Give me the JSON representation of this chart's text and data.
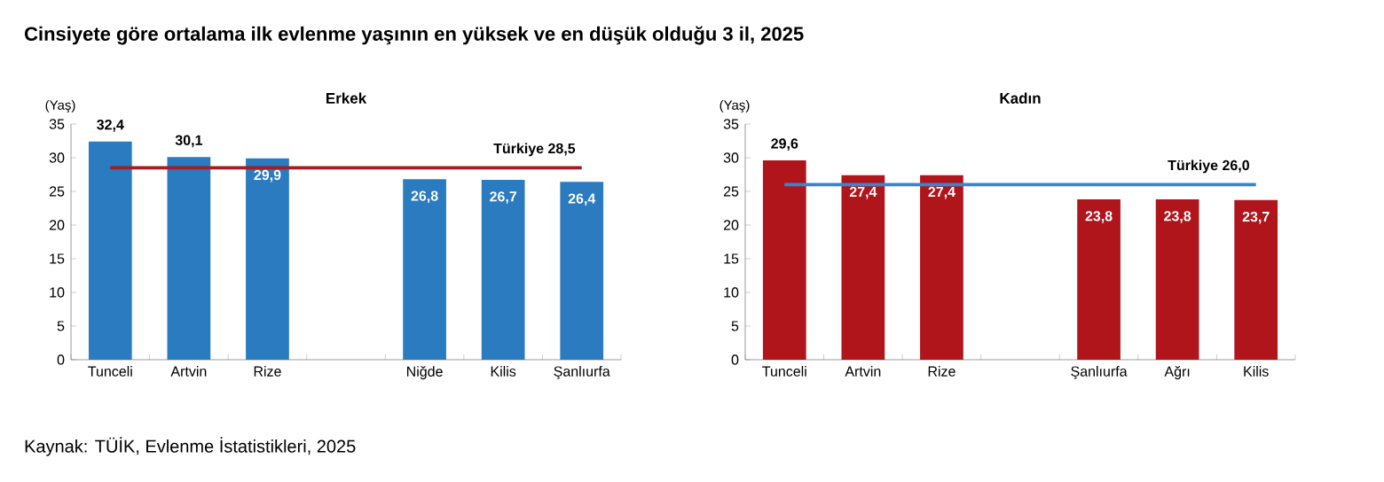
{
  "chart_data": [
    {
      "type": "bar",
      "title": "Erkek",
      "ylabel": "(Yaş)",
      "annotations": [
        "Cinsiyete göre ortalama ilk evlenme yaşının en yüksek ve en düşük olduğu 3 il, 2025",
        "Kaynak: TÜİK, Evlenme İstatistikleri, 2025"
      ],
      "categories": [
        "Tunceli",
        "Artvin",
        "Rize",
        null,
        "Niğde",
        "Kilis",
        "Şanlıurfa"
      ],
      "values": [
        32.4,
        30.1,
        29.9,
        null,
        26.8,
        26.7,
        26.4
      ],
      "value_labels": [
        "32,4",
        "30,1",
        "29,9",
        null,
        "26,8",
        "26,7",
        "26,4"
      ],
      "color": "#2b7bc0",
      "ylim": [
        0,
        35
      ],
      "yticks": [
        0,
        5,
        10,
        15,
        20,
        25,
        30,
        35
      ],
      "ref_lines": [
        {
          "axis": "y",
          "value": 28.5,
          "label": "Türkiye  28,5",
          "color": "#9e1f24"
        }
      ]
    },
    {
      "type": "bar",
      "title": "Kadın",
      "ylabel": "(Yaş)",
      "categories": [
        "Tunceli",
        "Artvin",
        "Rize",
        null,
        "Şanlıurfa",
        "Ağrı",
        "Kilis"
      ],
      "values": [
        29.6,
        27.4,
        27.4,
        null,
        23.8,
        23.8,
        23.7
      ],
      "value_labels": [
        "29,6",
        "27,4",
        "27,4",
        null,
        "23,8",
        "23,8",
        "23,7"
      ],
      "color": "#b0151c",
      "ylim": [
        0,
        35
      ],
      "yticks": [
        0,
        5,
        10,
        15,
        20,
        25,
        30,
        35
      ],
      "ref_lines": [
        {
          "axis": "y",
          "value": 26.0,
          "label": "Türkiye  26,0",
          "color": "#3a86c8"
        }
      ]
    }
  ]
}
